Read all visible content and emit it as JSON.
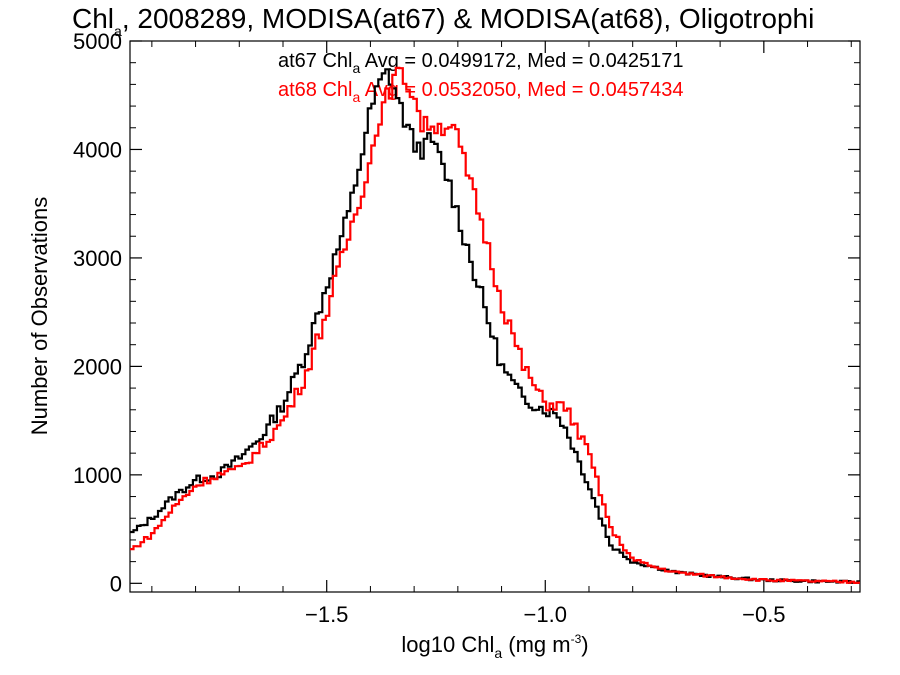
{
  "chart_data": {
    "type": "line",
    "step": true,
    "title": {
      "main": "Chl",
      "sub": "a",
      "rest": ", 2008289, MODISA(at67) & MODISA(at68), Oligotrophi"
    },
    "xlabel": {
      "main": "log10 Chl",
      "sub": "a",
      "units_pre": " (mg m",
      "units_sup": "-3",
      "units_post": ")"
    },
    "ylabel": "Number of Observations",
    "xlim": [
      -1.95,
      -0.28
    ],
    "ylim": [
      -80,
      5000
    ],
    "xticks": [
      -1.5,
      -1.0,
      -0.5
    ],
    "xtick_labels": [
      "−1.5",
      "−1.0",
      "−0.5"
    ],
    "yticks": [
      0,
      1000,
      2000,
      3000,
      4000,
      5000
    ],
    "ytick_labels": [
      "0",
      "1000",
      "2000",
      "3000",
      "4000",
      "5000"
    ],
    "annotations": [
      {
        "prefix": "at67 Chl",
        "sub": "a",
        "suffix": " Avg = 0.0499172, Med = 0.0425171",
        "color": "#000000"
      },
      {
        "prefix": "at68 Chl",
        "sub": "a",
        "suffix": " Avg = 0.0532050, Med = 0.0457434",
        "color": "#ff0000"
      }
    ],
    "series": [
      {
        "color": "#000000",
        "x": [
          -1.95,
          -1.9,
          -1.85,
          -1.8,
          -1.75,
          -1.7,
          -1.65,
          -1.6,
          -1.55,
          -1.5,
          -1.45,
          -1.42,
          -1.4,
          -1.38,
          -1.36,
          -1.34,
          -1.32,
          -1.3,
          -1.28,
          -1.26,
          -1.24,
          -1.22,
          -1.2,
          -1.15,
          -1.1,
          -1.05,
          -1.0,
          -0.97,
          -0.95,
          -0.9,
          -0.85,
          -0.8,
          -0.75,
          -0.7,
          -0.6,
          -0.5,
          -0.4,
          -0.28
        ],
        "y": [
          450,
          600,
          800,
          950,
          1000,
          1150,
          1350,
          1650,
          2100,
          2750,
          3400,
          3950,
          4350,
          4600,
          4720,
          4500,
          4250,
          4050,
          4000,
          4100,
          3900,
          3700,
          3400,
          2700,
          2000,
          1700,
          1600,
          1550,
          1400,
          900,
          350,
          200,
          150,
          100,
          60,
          30,
          20,
          10
        ]
      },
      {
        "color": "#ff0000",
        "x": [
          -1.95,
          -1.9,
          -1.85,
          -1.8,
          -1.75,
          -1.7,
          -1.65,
          -1.6,
          -1.55,
          -1.5,
          -1.45,
          -1.4,
          -1.38,
          -1.36,
          -1.34,
          -1.32,
          -1.3,
          -1.28,
          -1.26,
          -1.24,
          -1.22,
          -1.2,
          -1.18,
          -1.15,
          -1.1,
          -1.05,
          -1.0,
          -0.97,
          -0.95,
          -0.9,
          -0.85,
          -0.8,
          -0.75,
          -0.7,
          -0.6,
          -0.5,
          -0.4,
          -0.28
        ],
        "y": [
          300,
          450,
          700,
          900,
          1000,
          1050,
          1250,
          1500,
          1900,
          2500,
          3200,
          3900,
          4300,
          4500,
          4700,
          4650,
          4500,
          4200,
          4250,
          4200,
          4250,
          4100,
          3800,
          3400,
          2600,
          2000,
          1650,
          1650,
          1600,
          1200,
          500,
          220,
          150,
          100,
          60,
          30,
          20,
          10
        ]
      }
    ],
    "grid": false,
    "legend": "none"
  }
}
